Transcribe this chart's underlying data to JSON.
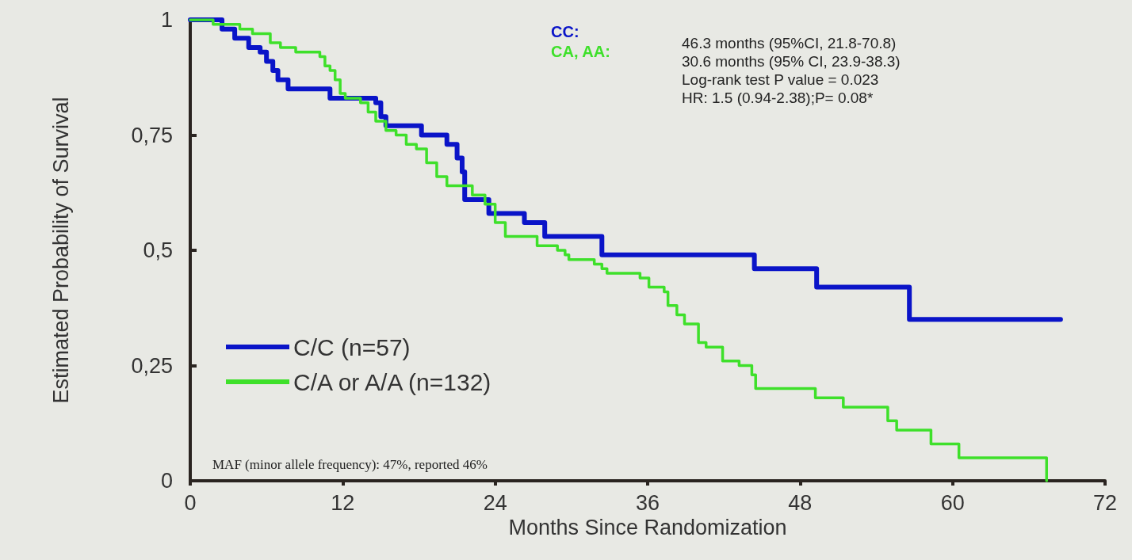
{
  "chart_data": {
    "type": "step",
    "xlabel": "Months Since Randomization",
    "ylabel": "Estimated Probability of Survival",
    "xlim": [
      0,
      72
    ],
    "xticks": [
      0,
      12,
      24,
      36,
      48,
      60,
      72
    ],
    "ylim": [
      0,
      1
    ],
    "yticks": [
      0,
      {
        "value": 0.25,
        "label": "0,25"
      },
      {
        "value": 0.5,
        "label": "0,5"
      },
      {
        "value": 0.75,
        "label": "0,75"
      },
      1
    ],
    "grid": false,
    "legend": "bottom left",
    "marker": "none",
    "line_style": "solid",
    "series": [
      {
        "name": "C/C (n=57)",
        "color": "#0a14c8",
        "x": [
          0,
          2.5,
          3.5,
          4.6,
          5.5,
          6.0,
          6.5,
          6.9,
          7.7,
          11.0,
          14.6,
          15.0,
          15.4,
          18.2,
          20.2,
          21.0,
          21.4,
          21.6,
          23.5,
          26.3,
          27.9,
          32.4,
          44.4,
          49.3,
          56.6,
          68.5
        ],
        "values": [
          1,
          0.98,
          0.96,
          0.94,
          0.93,
          0.91,
          0.89,
          0.87,
          0.85,
          0.83,
          0.82,
          0.79,
          0.77,
          0.75,
          0.73,
          0.7,
          0.67,
          0.61,
          0.58,
          0.56,
          0.53,
          0.49,
          0.46,
          0.42,
          0.35,
          0.35
        ]
      },
      {
        "name": "C/A or A/A (n=132)",
        "color": "#3ee02a",
        "x": [
          0,
          1.8,
          3.9,
          4.9,
          6.3,
          7.1,
          8.3,
          10.2,
          10.6,
          11.0,
          11.4,
          11.8,
          12.2,
          13.4,
          14.0,
          14.6,
          15.4,
          16.2,
          17.0,
          17.8,
          18.6,
          19.4,
          20.2,
          22.2,
          23.2,
          24.0,
          24.8,
          27.3,
          28.9,
          29.5,
          29.8,
          31.8,
          32.4,
          32.8,
          35.4,
          36.1,
          37.3,
          37.6,
          38.3,
          38.9,
          40.0,
          40.6,
          41.9,
          43.2,
          44.2,
          44.5,
          49.2,
          51.4,
          54.9,
          55.6,
          58.3,
          60.5,
          67.4
        ],
        "values": [
          1,
          0.99,
          0.98,
          0.97,
          0.95,
          0.94,
          0.93,
          0.92,
          0.9,
          0.89,
          0.87,
          0.84,
          0.83,
          0.82,
          0.8,
          0.78,
          0.76,
          0.75,
          0.73,
          0.72,
          0.69,
          0.66,
          0.64,
          0.62,
          0.6,
          0.56,
          0.53,
          0.51,
          0.5,
          0.49,
          0.48,
          0.47,
          0.46,
          0.45,
          0.44,
          0.42,
          0.41,
          0.38,
          0.36,
          0.34,
          0.3,
          0.29,
          0.26,
          0.25,
          0.23,
          0.2,
          0.18,
          0.16,
          0.13,
          0.11,
          0.08,
          0.05,
          0
        ]
      }
    ],
    "annotations": [
      "CC:",
      "CA, AA:",
      "46.3 months (95%CI, 21.8-70.8)",
      "30.6 months (95% CI, 23.9-38.3)",
      "Log-rank test P value = 0.023",
      "HR: 1.5 (0.94-2.38);P= 0.08*",
      "MAF (minor allele frequency): 47%, reported 46%"
    ]
  }
}
